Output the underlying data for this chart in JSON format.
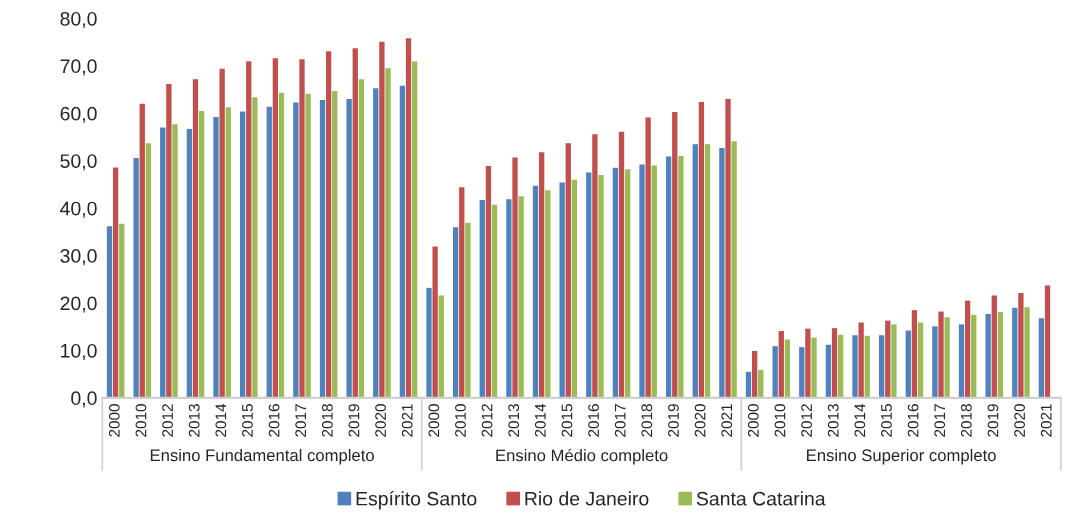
{
  "chart_data": {
    "type": "bar",
    "categories": [
      "2000",
      "2010",
      "2012",
      "2013",
      "2014",
      "2015",
      "2016",
      "2017",
      "2018",
      "2019",
      "2020",
      "2021",
      "2000",
      "2010",
      "2012",
      "2013",
      "2014",
      "2015",
      "2016",
      "2017",
      "2018",
      "2019",
      "2020",
      "2021",
      "2000",
      "2010",
      "2012",
      "2013",
      "2014",
      "2015",
      "2016",
      "2017",
      "2018",
      "2019",
      "2020",
      "2021"
    ],
    "series": [
      {
        "name": "Espírito Santo",
        "color": "#4f81bd",
        "values": [
          36.2,
          50.6,
          57.0,
          56.7,
          59.2,
          60.4,
          61.4,
          62.3,
          62.8,
          63.0,
          65.3,
          65.8,
          23.2,
          36.0,
          41.7,
          41.9,
          44.7,
          45.4,
          47.5,
          48.5,
          49.2,
          50.9,
          53.5,
          52.7,
          5.5,
          10.9,
          10.7,
          11.2,
          13.2,
          13.2,
          14.2,
          15.1,
          15.5,
          17.7,
          19.0,
          16.8
        ]
      },
      {
        "name": "Rio de Janeiro",
        "color": "#c0504d",
        "values": [
          48.6,
          62.0,
          66.2,
          67.2,
          69.4,
          71.0,
          71.6,
          71.4,
          73.1,
          73.7,
          75.1,
          75.8,
          31.9,
          44.4,
          48.9,
          50.7,
          51.8,
          53.7,
          55.6,
          56.1,
          59.1,
          60.3,
          62.4,
          63.0,
          9.9,
          14.1,
          14.6,
          14.7,
          15.9,
          16.3,
          18.5,
          18.2,
          20.5,
          21.6,
          22.1,
          23.7
        ]
      },
      {
        "name": "Santa Catarina",
        "color": "#9bbb59",
        "values": [
          36.7,
          53.7,
          57.7,
          60.5,
          61.3,
          63.4,
          64.3,
          64.1,
          64.7,
          67.2,
          69.5,
          70.9,
          21.6,
          36.9,
          40.7,
          42.5,
          43.8,
          46.0,
          47.0,
          48.2,
          49.0,
          51.0,
          53.5,
          54.1,
          5.9,
          12.3,
          12.7,
          13.3,
          13.1,
          15.5,
          15.9,
          17.0,
          17.5,
          18.1,
          19.1,
          null
        ]
      }
    ],
    "ylim": [
      0,
      80
    ],
    "yticks": [
      {
        "value": 0,
        "label": "0,0"
      },
      {
        "value": 10,
        "label": "10,0"
      },
      {
        "value": 20,
        "label": "20,0"
      },
      {
        "value": 30,
        "label": "30,0"
      },
      {
        "value": 40,
        "label": "40,0"
      },
      {
        "value": 50,
        "label": "50,0"
      },
      {
        "value": 60,
        "label": "60,0"
      },
      {
        "value": 70,
        "label": "70,0"
      },
      {
        "value": 80,
        "label": "80,0"
      }
    ],
    "annotations": [
      "Ensino Fundamental completo",
      "Ensino Médio completo",
      "Ensino Superior completo"
    ],
    "grid": false,
    "legend": "bottom"
  }
}
